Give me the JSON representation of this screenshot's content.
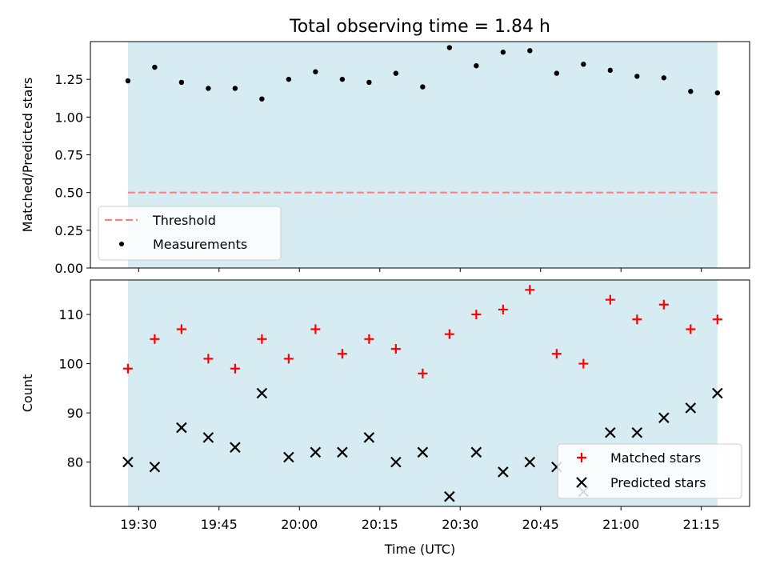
{
  "figure": {
    "title": "Total observing time = 1.84 h",
    "xlabel": "Time (UTC)"
  },
  "colors": {
    "shade": "#add8e6",
    "threshold": "#ff7f7f",
    "measurements": "#000000",
    "matched": "#ff0000",
    "predicted": "#000000"
  },
  "chart_data": [
    {
      "type": "scatter",
      "ylabel": "Matched/Predicted stars",
      "xlim": [
        "19:21",
        "21:24"
      ],
      "ylim": [
        0,
        1.5
      ],
      "yticks": [
        "0.00",
        "0.25",
        "0.50",
        "0.75",
        "1.00",
        "1.25"
      ],
      "grid": false,
      "legend_position": "lower-left",
      "shaded_span": [
        "19:28",
        "21:18"
      ],
      "threshold": {
        "name": "Threshold",
        "y": 0.5
      },
      "series": [
        {
          "name": "Measurements",
          "x": [
            "19:28",
            "19:33",
            "19:38",
            "19:43",
            "19:48",
            "19:53",
            "19:58",
            "20:03",
            "20:08",
            "20:13",
            "20:18",
            "20:23",
            "20:28",
            "20:33",
            "20:38",
            "20:43",
            "20:48",
            "20:53",
            "20:58",
            "21:03",
            "21:08",
            "21:13",
            "21:18"
          ],
          "values": [
            1.24,
            1.33,
            1.23,
            1.19,
            1.19,
            1.12,
            1.25,
            1.3,
            1.25,
            1.23,
            1.29,
            1.2,
            1.46,
            1.34,
            1.43,
            1.44,
            1.29,
            1.35,
            1.31,
            1.27,
            1.26,
            1.17,
            1.16
          ]
        }
      ]
    },
    {
      "type": "scatter",
      "ylabel": "Count",
      "xlim": [
        "19:21",
        "21:24"
      ],
      "ylim": [
        71,
        117
      ],
      "xticks": [
        "19:30",
        "19:45",
        "20:00",
        "20:15",
        "20:30",
        "20:45",
        "21:00",
        "21:15"
      ],
      "yticks": [
        "80",
        "90",
        "100",
        "110"
      ],
      "grid": false,
      "legend_position": "lower-right",
      "shaded_span": [
        "19:28",
        "21:18"
      ],
      "series": [
        {
          "name": "Matched stars",
          "x": [
            "19:28",
            "19:33",
            "19:38",
            "19:43",
            "19:48",
            "19:53",
            "19:58",
            "20:03",
            "20:08",
            "20:13",
            "20:18",
            "20:23",
            "20:28",
            "20:33",
            "20:38",
            "20:43",
            "20:48",
            "20:53",
            "20:58",
            "21:03",
            "21:08",
            "21:13",
            "21:18"
          ],
          "values": [
            99,
            105,
            107,
            101,
            99,
            105,
            101,
            107,
            102,
            105,
            103,
            98,
            106,
            110,
            111,
            115,
            102,
            100,
            113,
            109,
            112,
            107,
            109
          ]
        },
        {
          "name": "Predicted stars",
          "x": [
            "19:28",
            "19:33",
            "19:38",
            "19:43",
            "19:48",
            "19:53",
            "19:58",
            "20:03",
            "20:08",
            "20:13",
            "20:18",
            "20:23",
            "20:28",
            "20:33",
            "20:38",
            "20:43",
            "20:48",
            "20:53",
            "20:58",
            "21:03",
            "21:08",
            "21:13",
            "21:18"
          ],
          "values": [
            80,
            79,
            87,
            85,
            83,
            94,
            81,
            82,
            82,
            85,
            80,
            82,
            73,
            82,
            78,
            80,
            79,
            74,
            86,
            86,
            89,
            91,
            94
          ]
        }
      ]
    }
  ]
}
